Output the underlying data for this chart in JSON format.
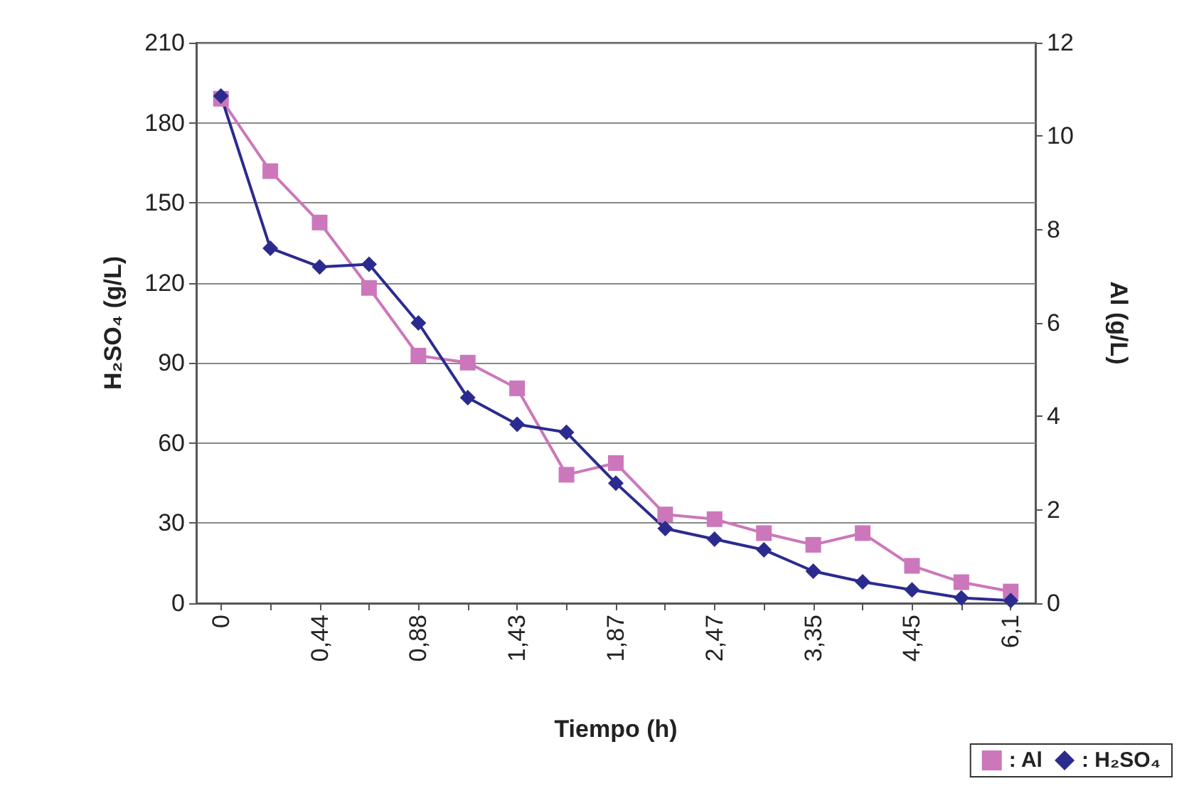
{
  "chart_data": {
    "type": "line",
    "xlabel": "Tiempo (h)",
    "ylabel": "H₂SO₄ (g/L)",
    "y2label": "Al (g/L)",
    "categories": [
      "0",
      null,
      "0,44",
      null,
      "0,88",
      null,
      "1,43",
      null,
      "1,87",
      null,
      "2,47",
      null,
      "3,35",
      null,
      "4,45",
      null,
      "6,1"
    ],
    "series": [
      {
        "name": ": Al",
        "color": "#cc77bb",
        "marker": "square",
        "axis": "y2",
        "values": [
          10.8,
          9.25,
          8.15,
          6.75,
          5.3,
          5.15,
          4.6,
          2.75,
          3.0,
          1.9,
          1.8,
          1.5,
          1.25,
          1.5,
          0.8,
          0.45,
          0.25
        ]
      },
      {
        "name": ": H₂SO₄",
        "color": "#2b2b8f",
        "marker": "diamond",
        "values": [
          190,
          133,
          126,
          127,
          105,
          77,
          67,
          64,
          45,
          28,
          24,
          20,
          12,
          8,
          5,
          2,
          1
        ]
      }
    ],
    "ylim": [
      0,
      210
    ],
    "yticks": [
      0,
      30,
      60,
      90,
      120,
      150,
      180,
      210
    ],
    "y2lim": [
      0,
      12
    ],
    "y2ticks": [
      0,
      2,
      4,
      6,
      8,
      10,
      12
    ],
    "grid": "y",
    "legend": "bottom right",
    "line_style": "solid"
  }
}
